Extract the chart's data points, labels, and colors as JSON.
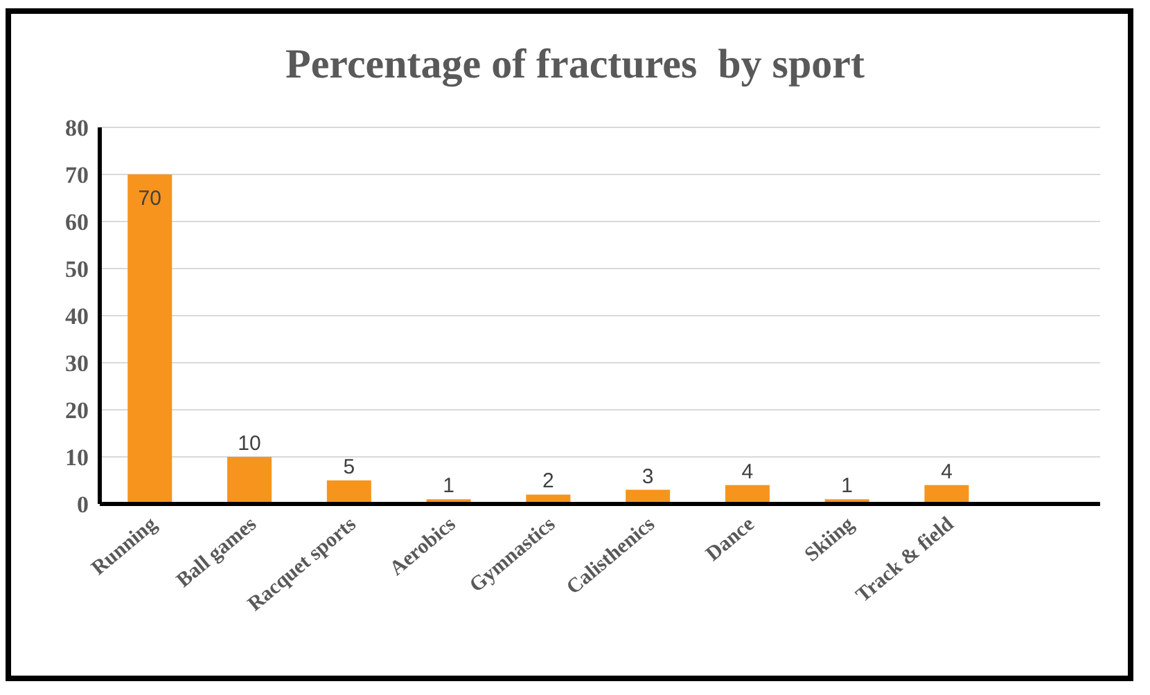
{
  "chart_data": {
    "type": "bar",
    "title": "Percentage of fractures  by sport",
    "categories": [
      "Running",
      "Ball games",
      "Racquet sports",
      "Aerobics",
      "Gymnastics",
      "Calisthenics",
      "Dance",
      "Skiing",
      "Track & field"
    ],
    "values": [
      70,
      10,
      5,
      1,
      2,
      3,
      4,
      1,
      4
    ],
    "color": "#f7941d",
    "ylim": [
      0,
      80
    ],
    "yticks": [
      0,
      10,
      20,
      30,
      40,
      50,
      60,
      70,
      80
    ],
    "grid": "y",
    "data_labels": true
  }
}
